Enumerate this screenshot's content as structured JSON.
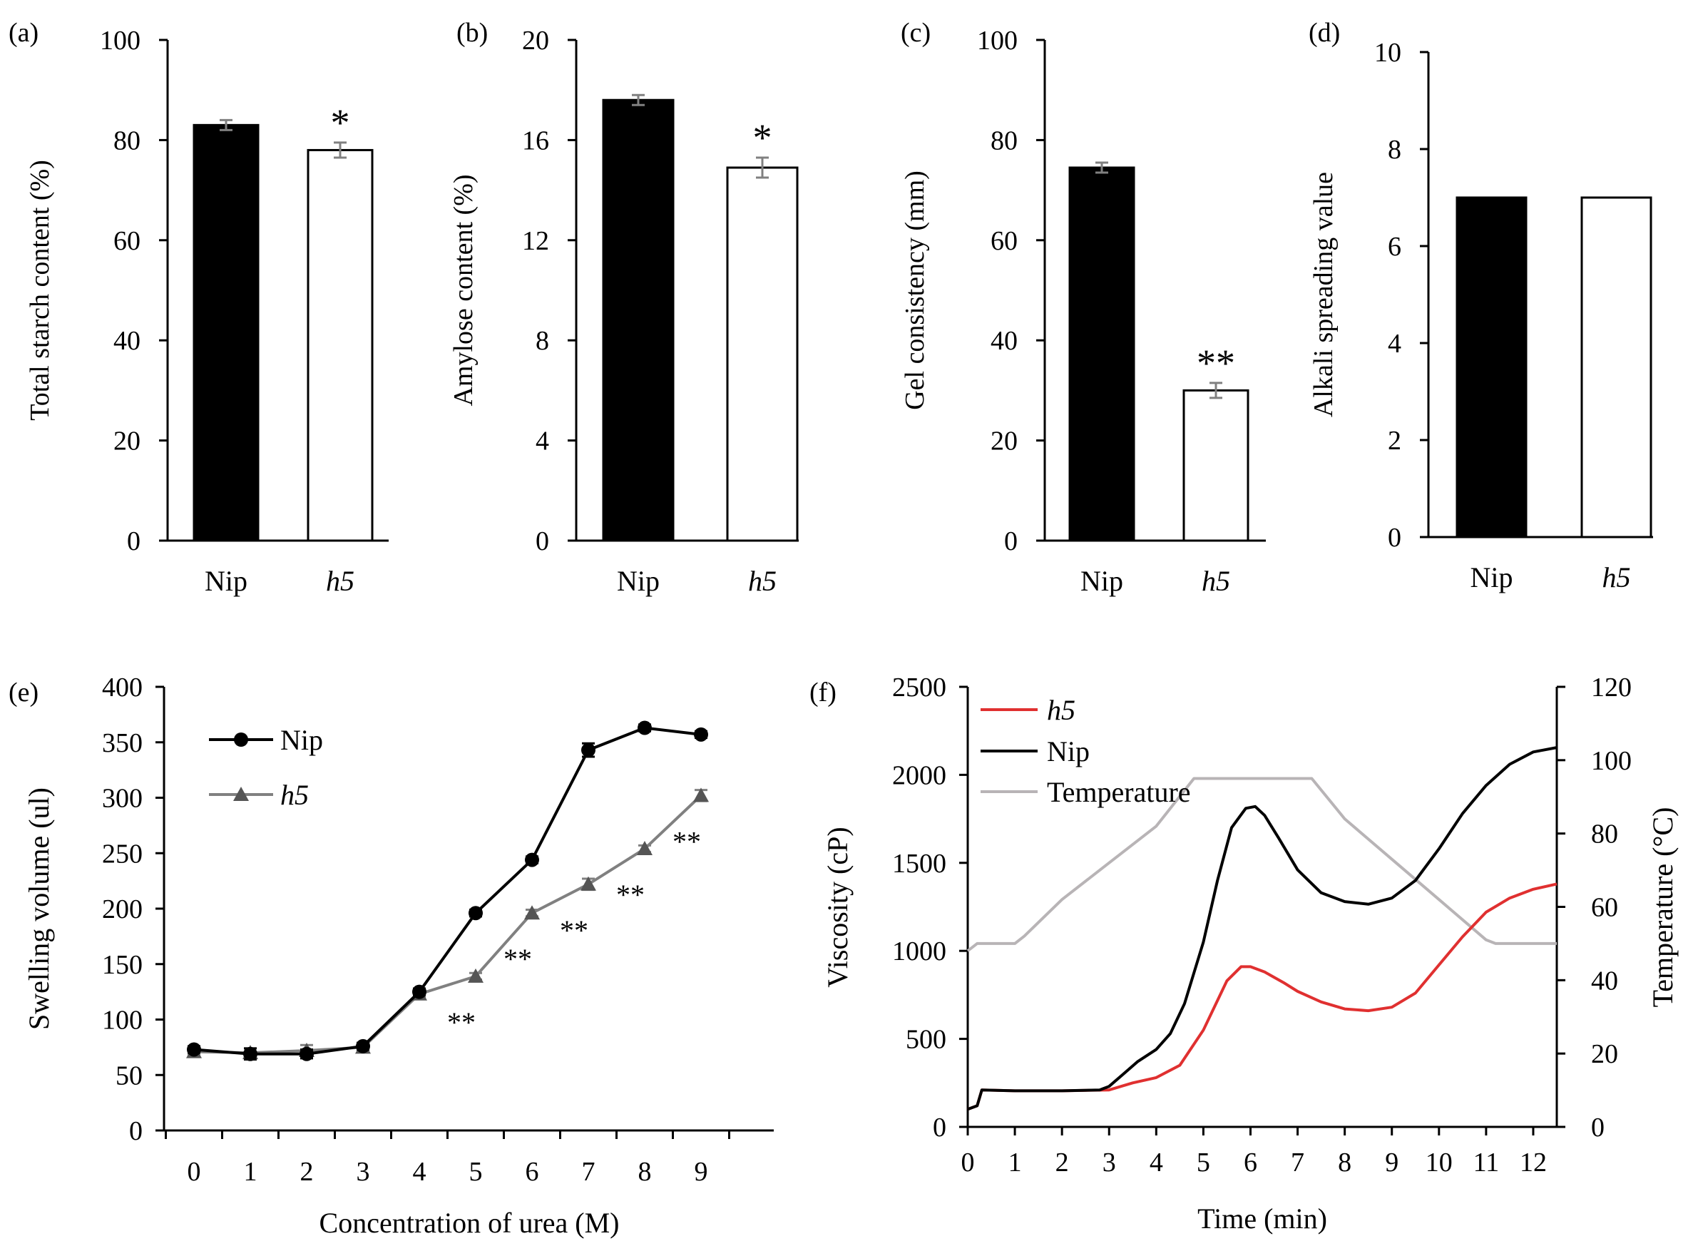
{
  "chart_data": [
    {
      "panel": "(a)",
      "type": "bar",
      "categories": [
        "Nip",
        "h5"
      ],
      "values": [
        83,
        78
      ],
      "errors": [
        1,
        1.5
      ],
      "significance": [
        "",
        "*"
      ],
      "colors": [
        "#000000",
        "#ffffff"
      ],
      "ylabel": "Total starch content (%)",
      "ylim": [
        0,
        100
      ],
      "yticks": [
        0,
        20,
        40,
        60,
        80,
        100
      ]
    },
    {
      "panel": "(b)",
      "type": "bar",
      "categories": [
        "Nip",
        "h5"
      ],
      "values": [
        17.6,
        14.9
      ],
      "errors": [
        0.2,
        0.4
      ],
      "significance": [
        "",
        "*"
      ],
      "colors": [
        "#000000",
        "#ffffff"
      ],
      "ylabel": "Amylose content (%)",
      "ylim": [
        0,
        20
      ],
      "yticks": [
        0,
        4,
        8,
        12,
        16,
        20
      ]
    },
    {
      "panel": "(c)",
      "type": "bar",
      "categories": [
        "Nip",
        "h5"
      ],
      "values": [
        74.5,
        30
      ],
      "errors": [
        1,
        1.5
      ],
      "significance": [
        "",
        "**"
      ],
      "colors": [
        "#000000",
        "#ffffff"
      ],
      "ylabel": "Gel consistency (mm)",
      "ylim": [
        0,
        100
      ],
      "yticks": [
        0,
        20,
        40,
        60,
        80,
        100
      ]
    },
    {
      "panel": "(d)",
      "type": "bar",
      "categories": [
        "Nip",
        "h5"
      ],
      "values": [
        7,
        7
      ],
      "errors": [
        0,
        0
      ],
      "significance": [
        "",
        ""
      ],
      "colors": [
        "#000000",
        "#ffffff"
      ],
      "ylabel": "Alkali spreading value",
      "ylim": [
        0,
        10
      ],
      "yticks": [
        0,
        2,
        4,
        6,
        8,
        10
      ]
    },
    {
      "panel": "(e)",
      "type": "line",
      "xlabel": "Concentration of urea (M)",
      "ylabel": "Swelling volume (ul)",
      "x": [
        0,
        1,
        2,
        3,
        4,
        5,
        6,
        7,
        8,
        9
      ],
      "xlim": [
        -0.4,
        9.4
      ],
      "ylim": [
        0,
        400
      ],
      "yticks": [
        0,
        50,
        100,
        150,
        200,
        250,
        300,
        350,
        400
      ],
      "series": [
        {
          "name": "Nip",
          "color": "#000000",
          "marker": "circle",
          "values": [
            73,
            69,
            69,
            76,
            125,
            196,
            244,
            343,
            363,
            357
          ],
          "errors": [
            3,
            5,
            4,
            3,
            3,
            3,
            3,
            6,
            3,
            3
          ]
        },
        {
          "name": "h5",
          "color": "#808080",
          "marker": "triangle",
          "values": [
            71,
            70,
            72,
            75,
            123,
            139,
            196,
            222,
            254,
            302
          ],
          "errors": [
            3,
            4,
            5,
            3,
            3,
            3,
            3,
            5,
            3,
            5
          ]
        }
      ],
      "significance": [
        {
          "x": 5,
          "label": "**"
        },
        {
          "x": 6,
          "label": "**"
        },
        {
          "x": 7,
          "label": "**"
        },
        {
          "x": 8,
          "label": "**"
        },
        {
          "x": 9,
          "label": "**"
        }
      ],
      "legend": "top-left"
    },
    {
      "panel": "(f)",
      "type": "line",
      "xlabel": "Time (min)",
      "ylabel": "Viscosity (cP)",
      "y2label": "Temperature (°C)",
      "xlim": [
        0,
        12.5
      ],
      "xticks": [
        0,
        1,
        2,
        3,
        4,
        5,
        6,
        7,
        8,
        9,
        10,
        11,
        12
      ],
      "ylim": [
        0,
        2500
      ],
      "yticks": [
        0,
        500,
        1000,
        1500,
        2000,
        2500
      ],
      "y2lim": [
        0,
        120
      ],
      "y2ticks": [
        0,
        20,
        40,
        60,
        80,
        100,
        120
      ],
      "series": [
        {
          "name": "h5",
          "color": "#e03030",
          "axis": "left",
          "x": [
            0,
            0.2,
            0.3,
            1,
            2,
            3,
            3.5,
            4,
            4.5,
            5,
            5.5,
            5.8,
            6,
            6.3,
            6.7,
            7,
            7.5,
            8,
            8.5,
            9,
            9.5,
            10,
            10.5,
            11,
            11.5,
            12,
            12.5
          ],
          "values": [
            100,
            120,
            210,
            205,
            205,
            210,
            250,
            280,
            350,
            550,
            830,
            910,
            910,
            880,
            820,
            770,
            710,
            670,
            660,
            680,
            760,
            920,
            1080,
            1220,
            1300,
            1350,
            1380
          ]
        },
        {
          "name": "Nip",
          "color": "#000000",
          "axis": "left",
          "x": [
            0,
            0.2,
            0.3,
            1,
            2,
            2.8,
            3,
            3.3,
            3.6,
            4,
            4.3,
            4.6,
            5,
            5.3,
            5.6,
            5.9,
            6.1,
            6.3,
            6.6,
            7,
            7.5,
            8,
            8.5,
            9,
            9.5,
            10,
            10.5,
            11,
            11.5,
            12,
            12.5
          ],
          "values": [
            100,
            120,
            210,
            205,
            205,
            210,
            230,
            300,
            370,
            440,
            530,
            700,
            1050,
            1400,
            1700,
            1810,
            1820,
            1770,
            1640,
            1460,
            1330,
            1280,
            1265,
            1300,
            1400,
            1580,
            1780,
            1940,
            2060,
            2130,
            2155
          ]
        },
        {
          "name": "Temperature",
          "color": "#b8b4b6",
          "axis": "right",
          "x": [
            0,
            0.2,
            1,
            1.2,
            2,
            3,
            4,
            4.8,
            5,
            6,
            7,
            7.3,
            8,
            9,
            10,
            11,
            11.2,
            12.5
          ],
          "values": [
            48,
            50,
            50,
            52,
            62,
            72,
            82,
            95,
            95,
            95,
            95,
            95,
            84,
            73,
            62,
            51,
            50,
            50
          ]
        }
      ],
      "legend": "top-left"
    }
  ]
}
